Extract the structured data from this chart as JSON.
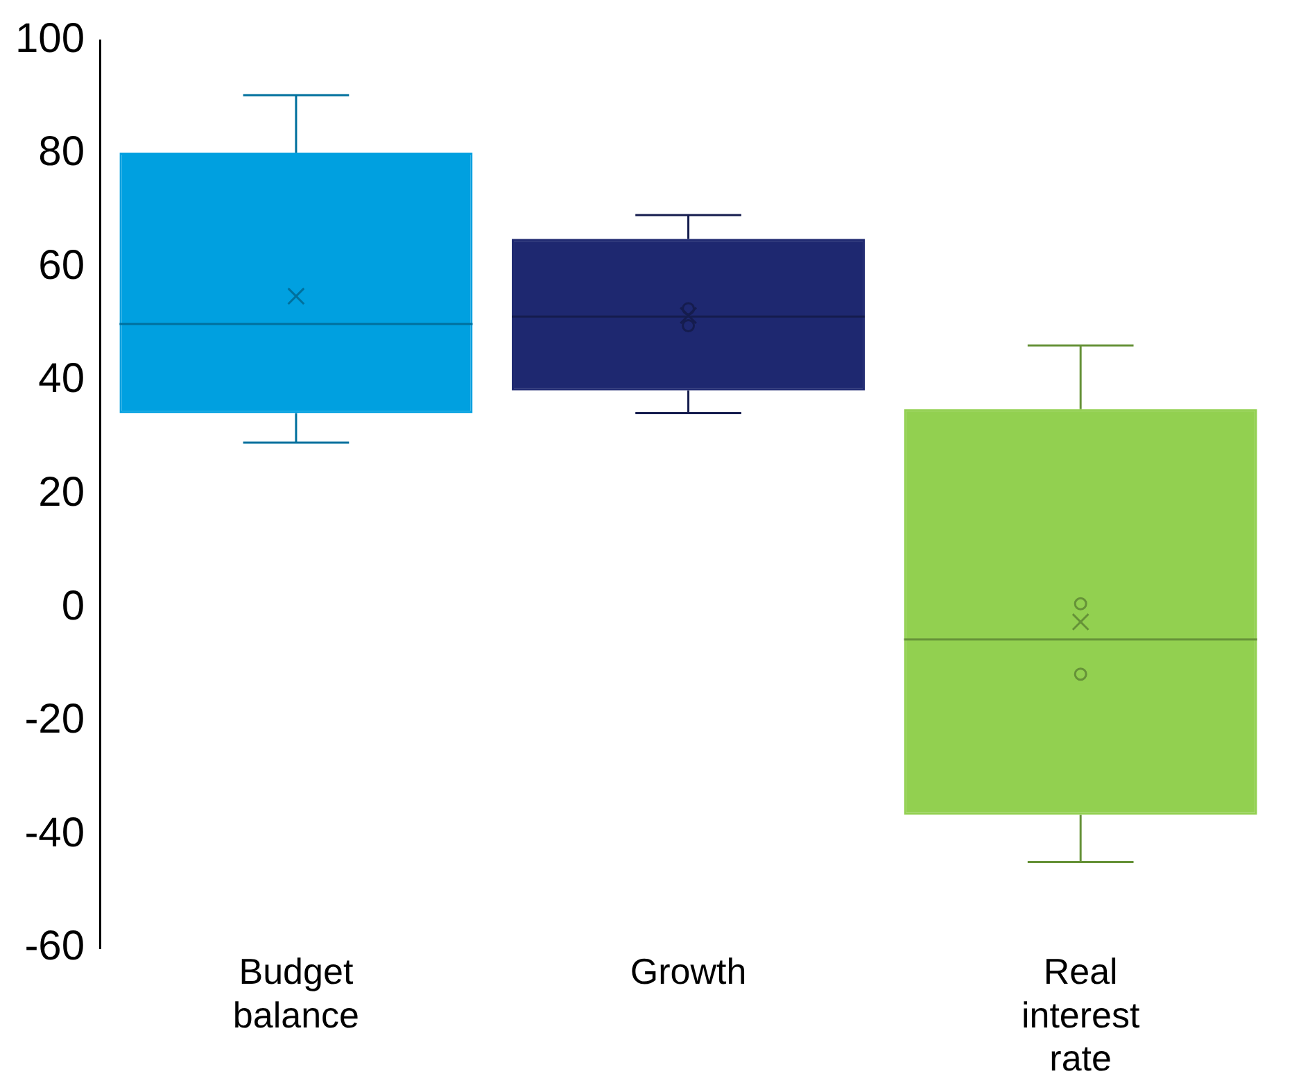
{
  "chart_data": {
    "type": "box",
    "categories": [
      "Budget balance",
      "Growth",
      "Real interest rate"
    ],
    "boxes": [
      {
        "low": 29.1,
        "q1": 34.3,
        "median": 50,
        "q3": 80.2,
        "high": 90.3,
        "mean": 54.9
      },
      {
        "low": 34.3,
        "q1": 38.3,
        "median": 51.3,
        "q3": 65,
        "high": 69.2,
        "mean": 51.5,
        "outliers": [
          52.7,
          49.7
        ]
      },
      {
        "low": -44.8,
        "q1": -36.5,
        "median": -5.6,
        "q3": 35,
        "high": 46.2,
        "mean": -2.5,
        "outliers": [
          0.7,
          -11.7
        ]
      }
    ],
    "colors": [
      "#00a0e0",
      "#1e2870",
      "#92d050"
    ],
    "ylim": [
      -60,
      100
    ],
    "yticks": [
      -60,
      -40,
      -20,
      0,
      20,
      40,
      60,
      80,
      100
    ],
    "grid": false,
    "legend": false
  }
}
